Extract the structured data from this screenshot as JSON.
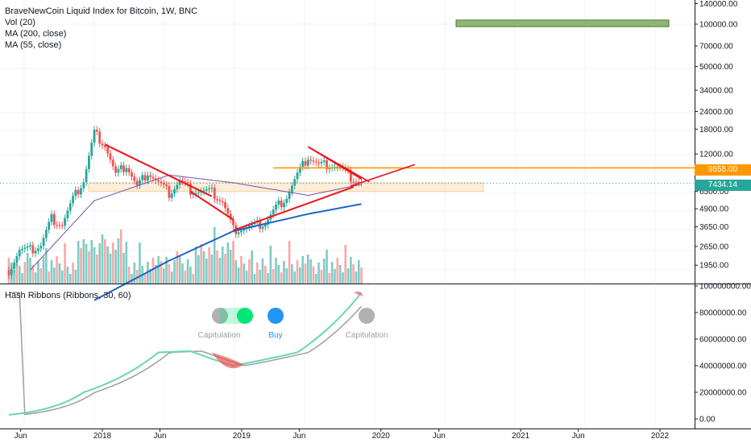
{
  "legend": {
    "title": "BraveNewCoin Liquid Index for Bitcoin, 1W, BNC",
    "vol": "Vol (20)",
    "ma200": "MA (200, close)",
    "ma55": "MA (55, close)",
    "hash": "Hash Ribbons (Ribbons, 30, 60)"
  },
  "price_tags": {
    "orange": "9555.00",
    "last": "7434.14"
  },
  "colors": {
    "up": "#26a69a",
    "down": "#ef5350",
    "trendline": "#f0131b",
    "horizontal": "#ff9800",
    "zone": "#fbe1c0",
    "target_box": "#6a9e4a",
    "ma55": "#7b4fb0",
    "ma200": "#1e63c6",
    "hash_fast": "#66d8b0",
    "hash_slow": "#9e9e9e",
    "capitulation": "#9e9e9e",
    "buy": "#2196f3",
    "ribbon_green": "#00e676"
  },
  "hash_labels": {
    "cap1": "Capitulation",
    "buy": "Buy",
    "cap2": "Capitulation"
  },
  "chart_data": {
    "type": "line",
    "price_axis_labels": [
      "140000.00",
      "100000.00",
      "70000.00",
      "50000.00",
      "34000.00",
      "24000.00",
      "18000.00",
      "12000.00",
      "9555.00",
      "7434.14",
      "6500.00",
      "4900.00",
      "3650.00",
      "2650.00",
      "1950.00"
    ],
    "hash_axis_labels": [
      "100000000.00",
      "80000000.00",
      "60000000.00",
      "40000000.00",
      "20000000.00",
      "0.00"
    ],
    "x_labels": [
      "Jun",
      "2018",
      "Jun",
      "2019",
      "Jun",
      "2020",
      "Jun",
      "2021",
      "Jun",
      "2022"
    ],
    "price_scale": "log",
    "series": [
      {
        "name": "BraveNewCoin Liquid Index for Bitcoin",
        "type": "candlestick",
        "x": [
          "2017-05-01",
          "2017-05-29",
          "2017-06-26",
          "2017-07-24",
          "2017-08-21",
          "2017-09-18",
          "2017-10-16",
          "2017-11-13",
          "2017-12-11",
          "2018-01-08",
          "2018-02-05",
          "2018-03-05",
          "2018-04-02",
          "2018-04-30",
          "2018-05-28",
          "2018-06-25",
          "2018-07-23",
          "2018-08-20",
          "2018-09-17",
          "2018-10-15",
          "2018-11-12",
          "2018-12-10",
          "2019-01-07",
          "2019-02-04",
          "2019-03-04",
          "2019-04-01",
          "2019-04-29",
          "2019-05-27",
          "2019-06-24",
          "2019-07-22",
          "2019-08-19",
          "2019-09-16",
          "2019-10-14",
          "2019-11-11"
        ],
        "values": [
          1800,
          2500,
          2500,
          2700,
          4200,
          3800,
          5700,
          7800,
          17000,
          14000,
          8500,
          10000,
          7000,
          9000,
          7500,
          6300,
          7700,
          6700,
          6500,
          6400,
          5500,
          3500,
          3600,
          3700,
          3900,
          5000,
          6000,
          8500,
          11500,
          10000,
          10200,
          9600,
          8200,
          7434
        ]
      },
      {
        "name": "MA (200, close)",
        "x": [
          "2017-12-11",
          "2018-06-25",
          "2018-12-10",
          "2019-06-24",
          "2019-11-11"
        ],
        "values": [
          1100,
          2100,
          3400,
          4500,
          5300
        ]
      },
      {
        "name": "MA (55, close)",
        "x": [
          "2017-06-26",
          "2017-12-11",
          "2018-06-25",
          "2018-12-10",
          "2019-06-24",
          "2019-11-11"
        ],
        "values": [
          1800,
          5600,
          8500,
          7500,
          6100,
          7300
        ]
      },
      {
        "name": "Hash Ribbons (Ribbons, 30, 60)",
        "x": [
          "2017-05-01",
          "2017-11-13",
          "2018-05-28",
          "2018-08-20",
          "2018-12-10",
          "2019-05-27",
          "2019-11-11"
        ],
        "values": [
          3000000,
          20000000,
          50000000,
          51000000,
          40000000,
          50000000,
          95000000
        ]
      }
    ],
    "annotations": [
      {
        "type": "horizontal",
        "value": 9555
      },
      {
        "type": "trendline",
        "from": [
          "2018-01-08",
          14000
        ],
        "to": [
          "2018-10-15",
          6000
        ]
      },
      {
        "type": "trendline",
        "from": [
          "2018-08-20",
          6500
        ],
        "to": [
          "2018-12-10",
          4100
        ]
      },
      {
        "type": "trendline",
        "from": [
          "2018-12-10",
          3450
        ],
        "to": [
          "2019-10-21",
          7000
        ]
      },
      {
        "type": "trendline",
        "from": [
          "2019-06-24",
          13500
        ],
        "to": [
          "2019-11-11",
          8000
        ]
      },
      {
        "type": "zone",
        "range": [
          6500,
          7500
        ]
      },
      {
        "type": "target_box",
        "range": [
          96000,
          107000
        ]
      }
    ]
  }
}
